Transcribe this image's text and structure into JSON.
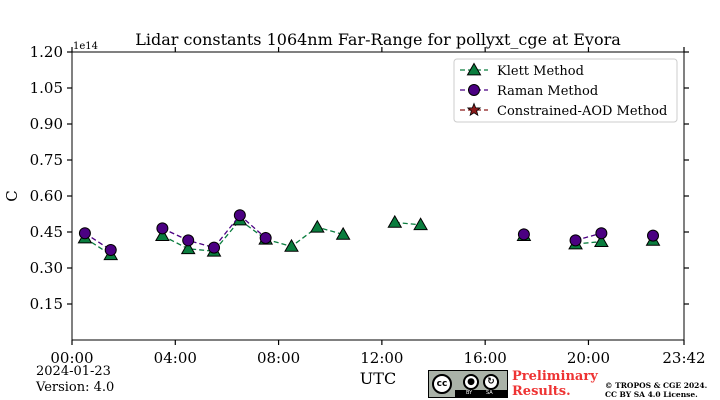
{
  "chart_data": {
    "type": "line",
    "title": "Lidar constants 1064nm Far-Range for pollyxt_cge at Evora",
    "xlabel": "UTC",
    "ylabel": "C",
    "y_offset_label": "1e14",
    "x_unit": "hours UTC",
    "xlim": [
      0,
      23.7
    ],
    "ylim": [
      0,
      1.2
    ],
    "x_ticks": [
      {
        "value": 0,
        "label": "00:00"
      },
      {
        "value": 4,
        "label": "04:00"
      },
      {
        "value": 8,
        "label": "08:00"
      },
      {
        "value": 12,
        "label": "12:00"
      },
      {
        "value": 16,
        "label": "16:00"
      },
      {
        "value": 20,
        "label": "20:00"
      },
      {
        "value": 23.7,
        "label": "23:42"
      }
    ],
    "y_ticks": [
      {
        "value": 0.15,
        "label": "0.15"
      },
      {
        "value": 0.3,
        "label": "0.30"
      },
      {
        "value": 0.45,
        "label": "0.45"
      },
      {
        "value": 0.6,
        "label": "0.60"
      },
      {
        "value": 0.75,
        "label": "0.75"
      },
      {
        "value": 0.9,
        "label": "0.90"
      },
      {
        "value": 1.05,
        "label": "1.05"
      },
      {
        "value": 1.2,
        "label": "1.20"
      }
    ],
    "grid": false,
    "legend_position": "top-right",
    "series": [
      {
        "name": "Klett Method",
        "color": "#0a7d3e",
        "marker": "triangle",
        "linestyle": "dashed",
        "segments": [
          [
            [
              0.5,
              0.425
            ],
            [
              1.5,
              0.355
            ]
          ],
          [
            [
              3.5,
              0.435
            ],
            [
              4.5,
              0.38
            ],
            [
              5.5,
              0.37
            ],
            [
              6.5,
              0.5
            ],
            [
              7.5,
              0.42
            ],
            [
              8.5,
              0.39
            ],
            [
              9.5,
              0.47
            ],
            [
              10.5,
              0.44
            ]
          ],
          [
            [
              12.5,
              0.49
            ],
            [
              13.5,
              0.48
            ]
          ],
          [
            [
              17.5,
              0.435
            ]
          ],
          [
            [
              19.5,
              0.4
            ],
            [
              20.5,
              0.41
            ]
          ],
          [
            [
              22.5,
              0.415
            ]
          ]
        ]
      },
      {
        "name": "Raman Method",
        "color": "#4b0082",
        "marker": "circle",
        "linestyle": "dashed",
        "segments": [
          [
            [
              0.5,
              0.445
            ],
            [
              1.5,
              0.375
            ]
          ],
          [
            [
              3.5,
              0.465
            ],
            [
              4.5,
              0.415
            ],
            [
              5.5,
              0.385
            ],
            [
              6.5,
              0.52
            ],
            [
              7.5,
              0.425
            ]
          ],
          [
            [
              17.5,
              0.44
            ]
          ],
          [
            [
              19.5,
              0.415
            ],
            [
              20.5,
              0.445
            ]
          ],
          [
            [
              22.5,
              0.435
            ]
          ]
        ]
      },
      {
        "name": "Constrained-AOD Method",
        "color": "#8b1a1a",
        "marker": "star",
        "linestyle": "dashed",
        "segments": []
      }
    ]
  },
  "footer": {
    "date": "2024-01-23",
    "version": "Version: 4.0",
    "prelim_line1": "Preliminary",
    "prelim_line2": "Results.",
    "copyright_line1": "© TROPOS & CGE 2024.",
    "copyright_line2": "CC BY SA 4.0 License.",
    "cc_label": "cc",
    "cc_by": "BY",
    "cc_sa": "SA"
  }
}
